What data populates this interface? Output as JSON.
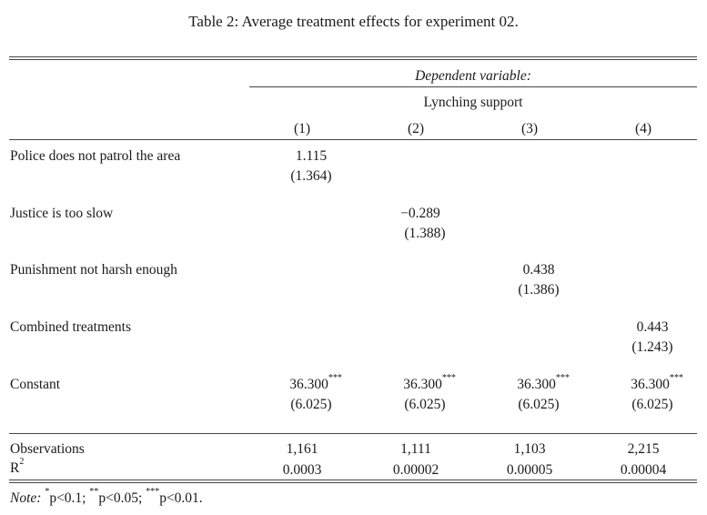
{
  "caption": "Table 2: Average treatment effects for experiment 02.",
  "header": {
    "dependent_variable": "Dependent variable:",
    "outcome": "Lynching support",
    "columns": [
      "(1)",
      "(2)",
      "(3)",
      "(4)"
    ]
  },
  "rows": {
    "police": {
      "label": "Police does not patrol the area",
      "coef": "1.115",
      "se": "(1.364)"
    },
    "justice": {
      "label": "Justice is too slow",
      "coef": "−0.289",
      "se": "(1.388)"
    },
    "punishment": {
      "label": "Punishment not harsh enough",
      "coef": "0.438",
      "se": "(1.386)"
    },
    "combined": {
      "label": "Combined treatments",
      "coef": "0.443",
      "se": "(1.243)"
    },
    "constant": {
      "label": "Constant",
      "coef": [
        "36.300",
        "36.300",
        "36.300",
        "36.300"
      ],
      "stars": "***",
      "se": [
        "(6.025)",
        "(6.025)",
        "(6.025)",
        "(6.025)"
      ]
    }
  },
  "stats": {
    "observations": {
      "label": "Observations",
      "values": [
        "1,161",
        "1,111",
        "1,103",
        "2,215"
      ]
    },
    "r2": {
      "label_base": "R",
      "label_sup": "2",
      "values": [
        "0.0003",
        "0.00002",
        "0.00005",
        "0.00004"
      ]
    }
  },
  "note": {
    "label": "Note:",
    "s1": "*",
    "t1": "p<0.1; ",
    "s2": "**",
    "t2": "p<0.05; ",
    "s3": "***",
    "t3": "p<0.01."
  }
}
